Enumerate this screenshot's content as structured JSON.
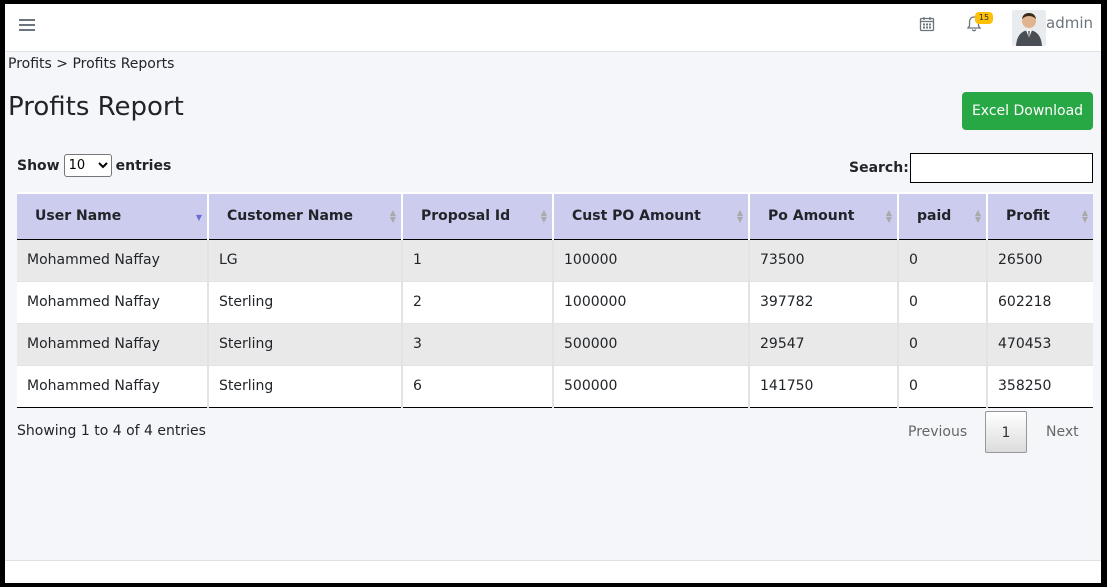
{
  "topbar": {
    "notification_count": "15",
    "username": "admin"
  },
  "breadcrumb": "Profits > Profits Reports",
  "page_title": "Profits Report",
  "excel_button": "Excel Download",
  "length": {
    "show_label": "Show",
    "selected": "10",
    "entries_label": "entries"
  },
  "search": {
    "label": "Search:",
    "value": ""
  },
  "table": {
    "columns": [
      "User Name",
      "Customer Name",
      "Proposal Id",
      "Cust PO Amount",
      "Po Amount",
      "paid",
      "Profit"
    ],
    "rows": [
      [
        "Mohammed Naffay",
        "LG",
        "1",
        "100000",
        "73500",
        "0",
        "26500"
      ],
      [
        "Mohammed Naffay",
        "Sterling",
        "2",
        "1000000",
        "397782",
        "0",
        "602218"
      ],
      [
        "Mohammed Naffay",
        "Sterling",
        "3",
        "500000",
        "29547",
        "0",
        "470453"
      ],
      [
        "Mohammed Naffay",
        "Sterling",
        "6",
        "500000",
        "141750",
        "0",
        "358250"
      ]
    ]
  },
  "info": "Showing 1 to 4 of 4 entries",
  "pagination": {
    "previous": "Previous",
    "page": "1",
    "next": "Next"
  },
  "colors": {
    "header_bg": "#ccccee",
    "button_green": "#28a745",
    "badge": "#ffc107"
  }
}
